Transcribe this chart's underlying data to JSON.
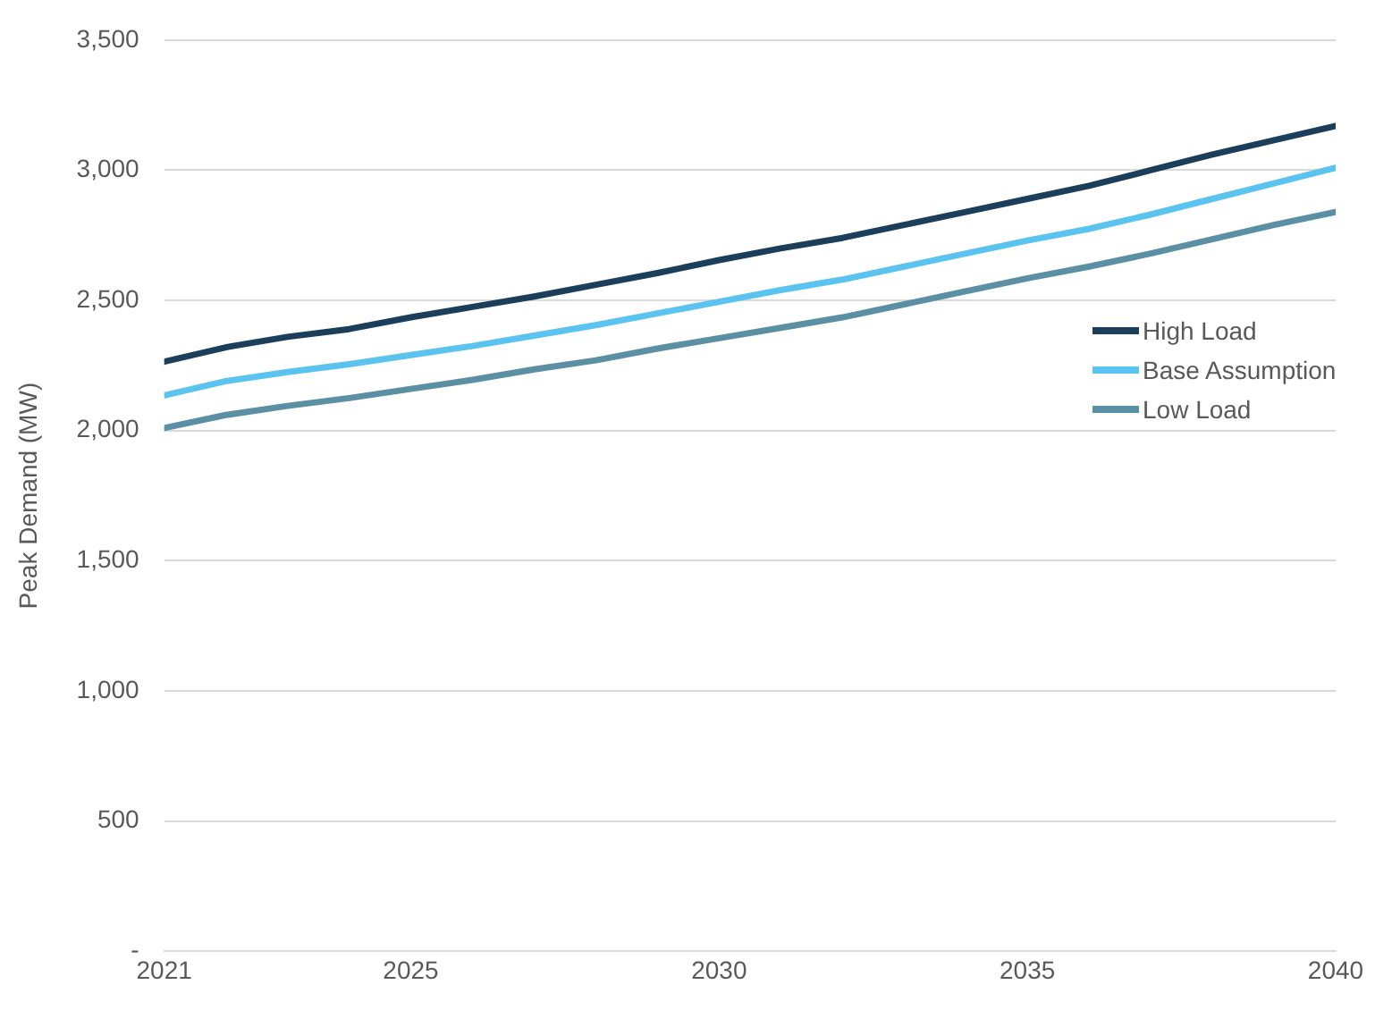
{
  "chart_data": {
    "type": "line",
    "ylabel": "Peak Demand (MW)",
    "x": [
      2021,
      2022,
      2023,
      2024,
      2025,
      2026,
      2027,
      2028,
      2029,
      2030,
      2031,
      2032,
      2033,
      2034,
      2035,
      2036,
      2037,
      2038,
      2039,
      2040
    ],
    "xlim": [
      2021,
      2040
    ],
    "xticks": [
      2021,
      2025,
      2030,
      2035,
      2040
    ],
    "ylim": [
      0,
      3500
    ],
    "yticks": [
      {
        "value": 0,
        "label": "-"
      },
      {
        "value": 500,
        "label": "500"
      },
      {
        "value": 1000,
        "label": "1,000"
      },
      {
        "value": 1500,
        "label": "1,500"
      },
      {
        "value": 2000,
        "label": "2,000"
      },
      {
        "value": 2500,
        "label": "2,500"
      },
      {
        "value": 3000,
        "label": "3,000"
      },
      {
        "value": 3500,
        "label": "3,500"
      }
    ],
    "grid": "y",
    "legend": "right",
    "marker": "none",
    "line_style": "solid",
    "series": [
      {
        "name": "High Load",
        "color": "#1b3f5a",
        "values": [
          2265,
          2320,
          2360,
          2390,
          2435,
          2475,
          2515,
          2560,
          2605,
          2655,
          2700,
          2740,
          2790,
          2840,
          2890,
          2940,
          3000,
          3060,
          3115,
          3170
        ]
      },
      {
        "name": "Base Assumption",
        "color": "#5bc3ef",
        "values": [
          2135,
          2190,
          2225,
          2255,
          2290,
          2325,
          2365,
          2405,
          2450,
          2495,
          2540,
          2580,
          2630,
          2680,
          2730,
          2775,
          2830,
          2890,
          2950,
          3010
        ]
      },
      {
        "name": "Low Load",
        "color": "#5b8fa3",
        "values": [
          2010,
          2060,
          2095,
          2125,
          2160,
          2195,
          2235,
          2270,
          2315,
          2355,
          2395,
          2435,
          2485,
          2535,
          2585,
          2630,
          2680,
          2735,
          2790,
          2840
        ]
      }
    ]
  }
}
